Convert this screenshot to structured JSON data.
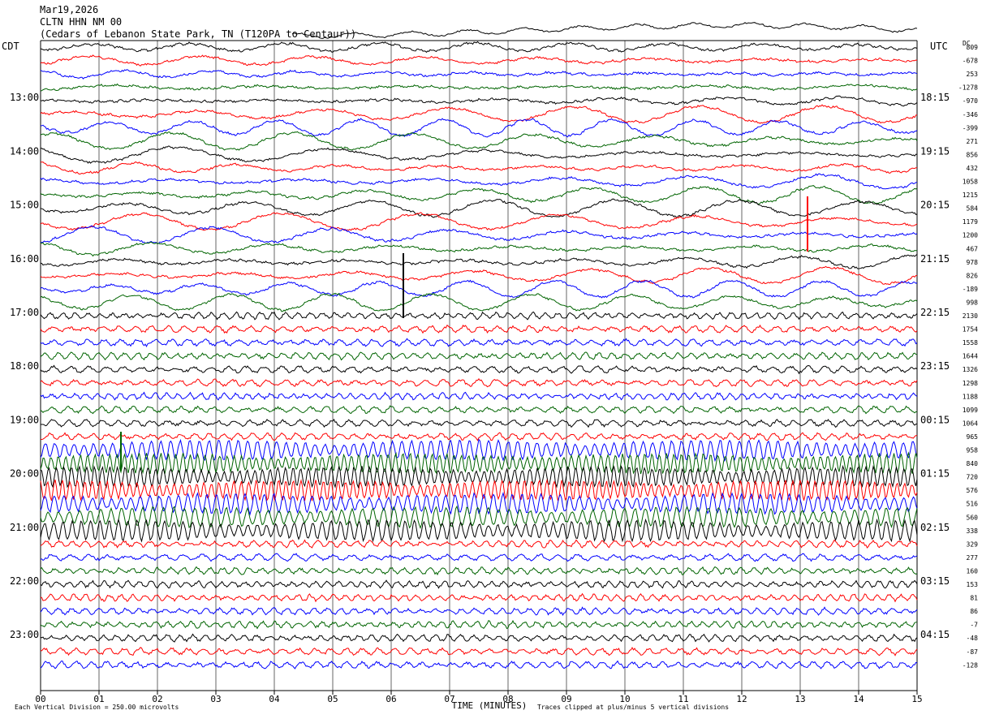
{
  "header": {
    "date": "Mar19,2026",
    "station": "CLTN HHN NM 00",
    "location": "(Cedars of Lebanon State Park, TN (T120PA to Centaur))"
  },
  "left_timezone": "CDT",
  "right_timezone": "UTC",
  "dc_label": "DC",
  "footer": {
    "left": "Each Vertical Division =  250.00 microvolts",
    "center": "TIME (MINUTES)",
    "right": "Traces clipped at plus/minus 5 vertical divisions"
  },
  "chart_data": {
    "type": "line",
    "title": "CLTN HHN NM 00",
    "xlabel": "TIME (MINUTES)",
    "x_ticks": [
      "00",
      "01",
      "02",
      "03",
      "04",
      "05",
      "06",
      "07",
      "08",
      "09",
      "10",
      "11",
      "12",
      "13",
      "14",
      "15"
    ],
    "xlim": [
      0,
      15
    ],
    "left_hour_labels": [
      "13:00",
      "14:00",
      "15:00",
      "16:00",
      "17:00",
      "18:00",
      "19:00",
      "20:00",
      "21:00",
      "22:00",
      "23:00"
    ],
    "right_hour_labels": [
      "18:15",
      "19:15",
      "20:15",
      "21:15",
      "22:15",
      "23:15",
      "00:15",
      "01:15",
      "02:15",
      "03:15",
      "04:15"
    ],
    "trace_colors": [
      "#000000",
      "#ff0000",
      "#0000ff",
      "#006400"
    ],
    "dc_offsets": [
      809,
      -678,
      253,
      -1278,
      -970,
      -346,
      -399,
      271,
      856,
      432,
      1058,
      1215,
      584,
      1179,
      1200,
      467,
      978,
      826,
      -189,
      998,
      2130,
      1754,
      1558,
      1644,
      1326,
      1298,
      1188,
      1099,
      1064,
      965,
      958,
      840,
      720,
      576,
      516,
      560,
      338,
      329,
      277,
      160,
      153,
      81,
      86,
      -7,
      -48,
      -87,
      -128
    ],
    "vertical_division_microvolts": 250.0,
    "clip_divisions": 5
  }
}
